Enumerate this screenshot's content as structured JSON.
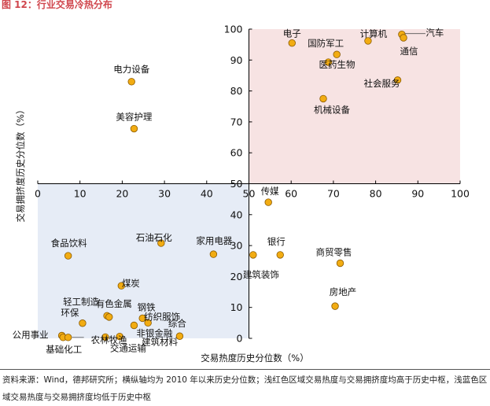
{
  "figure_title": "图 12：行业交易冷热分布",
  "source_note": "资料来源：Wind，德邦研究所；横纵轴均为 2010 年以来历史分位数；浅红色区域交易热度与交易拥挤度均高于历史中枢，浅蓝色区域交易热度与交易拥挤度均低于历史中枢",
  "colors": {
    "title": "#d0464d",
    "hot_region": "#f7e3e3",
    "cold_region": "#e6ecf6",
    "point_fill": "#f2ac12",
    "point_stroke": "#8a5a00",
    "axis": "#000000",
    "text": "#111111"
  },
  "chart_data": {
    "type": "scatter",
    "title": "行业交易冷热分布",
    "xlabel": "交易热度历史分位数（%）",
    "ylabel": "交易拥挤度历史分位数（%）",
    "xlim": [
      0,
      100
    ],
    "ylim": [
      0,
      100
    ],
    "x_ticks": [
      0,
      10,
      20,
      30,
      40,
      50,
      60,
      70,
      80,
      90,
      100
    ],
    "y_ticks": [
      0,
      10,
      20,
      30,
      40,
      50,
      60,
      70,
      80,
      90,
      100
    ],
    "grid": false,
    "axes_cross_at": [
      50,
      50
    ],
    "regions": [
      {
        "name": "hot",
        "x": [
          50,
          100
        ],
        "y": [
          50,
          100
        ],
        "color": "#f7e3e3"
      },
      {
        "name": "cold",
        "x": [
          0,
          50
        ],
        "y": [
          0,
          50
        ],
        "color": "#e6ecf6"
      }
    ],
    "points": [
      {
        "label": "电子",
        "x": 60.2,
        "y": 95.5
      },
      {
        "label": "计算机",
        "x": 78.2,
        "y": 96.2
      },
      {
        "label": "汽车",
        "x": 86.2,
        "y": 98.3
      },
      {
        "label": "通信",
        "x": 86.6,
        "y": 97.2
      },
      {
        "label": "国防军工",
        "x": 70.8,
        "y": 91.8
      },
      {
        "label": "医药生物",
        "x": 68.8,
        "y": 89.3
      },
      {
        "label": "社会服务",
        "x": 85.2,
        "y": 83.5
      },
      {
        "label": "机械设备",
        "x": 67.6,
        "y": 77.5
      },
      {
        "label": "电力设备",
        "x": 22.2,
        "y": 83.0
      },
      {
        "label": "美容护理",
        "x": 22.8,
        "y": 67.8
      },
      {
        "label": "传媒",
        "x": 54.6,
        "y": 44.0
      },
      {
        "label": "银行",
        "x": 57.4,
        "y": 27.0
      },
      {
        "label": "建筑装饰",
        "x": 51.0,
        "y": 27.0
      },
      {
        "label": "商贸零售",
        "x": 71.6,
        "y": 24.3
      },
      {
        "label": "房地产",
        "x": 70.4,
        "y": 10.4
      },
      {
        "label": "食品饮料",
        "x": 7.2,
        "y": 26.7
      },
      {
        "label": "石油石化",
        "x": 29.2,
        "y": 30.8
      },
      {
        "label": "家用电器",
        "x": 41.6,
        "y": 27.2
      },
      {
        "label": "煤炭",
        "x": 19.8,
        "y": 17.0
      },
      {
        "label": "轻工制造",
        "x": 16.4,
        "y": 7.3
      },
      {
        "label": "有色金属",
        "x": 16.9,
        "y": 6.9
      },
      {
        "label": "钢铁",
        "x": 24.8,
        "y": 6.5
      },
      {
        "label": "环保",
        "x": 10.6,
        "y": 4.9
      },
      {
        "label": "纺织服饰",
        "x": 26.1,
        "y": 5.0
      },
      {
        "label": "综合",
        "x": 33.6,
        "y": 0.7
      },
      {
        "label": "非银金融",
        "x": 22.8,
        "y": 4.2
      },
      {
        "label": "公用事业",
        "x": 5.7,
        "y": 0.9
      },
      {
        "label": "基础化工",
        "x": 6.0,
        "y": 0.3
      },
      {
        "label": "农林牧渔",
        "x": 7.2,
        "y": 0.3
      },
      {
        "label": "交通运输",
        "x": 16.0,
        "y": 0.4
      },
      {
        "label": "建筑材料",
        "x": 19.4,
        "y": 0.6
      }
    ]
  }
}
